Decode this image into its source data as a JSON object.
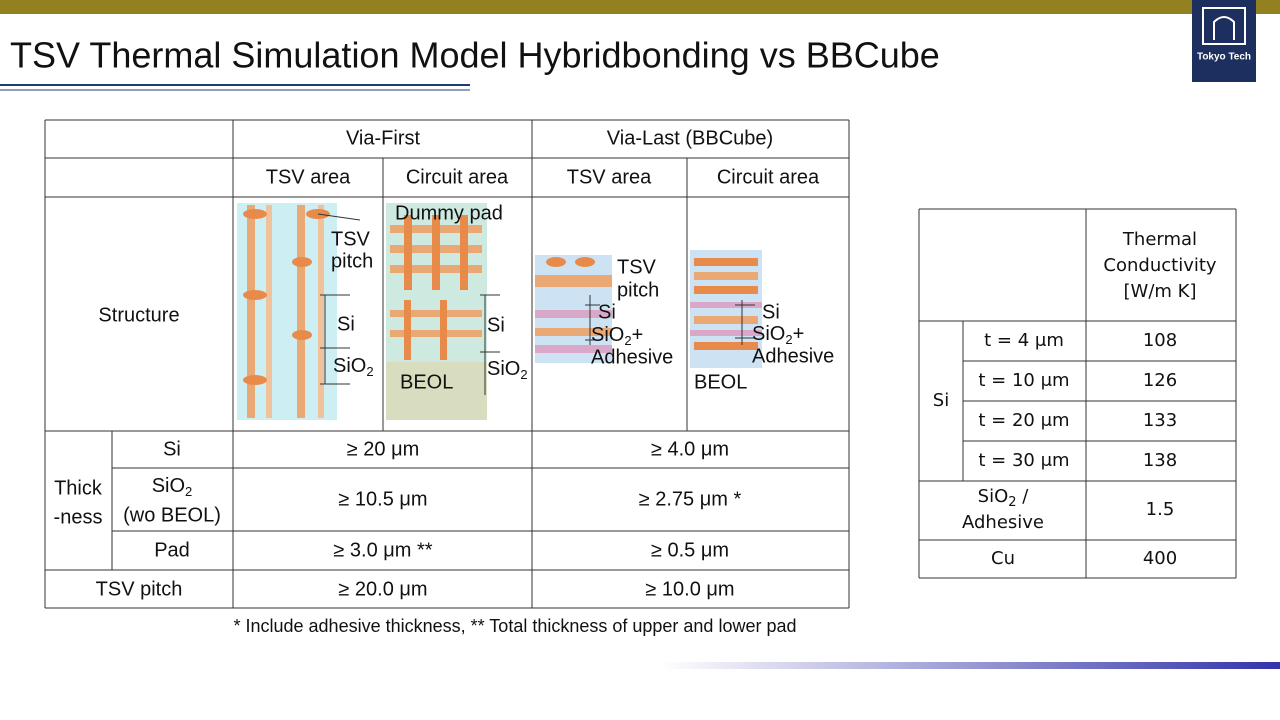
{
  "header": {
    "title": "TSV Thermal Simulation Model Hybridbonding vs BBCube",
    "logo": "Tokyo Tech"
  },
  "left_table": {
    "headers": {
      "via_first": "Via-First",
      "via_last": "Via-Last (BBCube)",
      "tsv_area_1": "TSV area",
      "circuit_area_1": "Circuit area",
      "tsv_area_2": "TSV area",
      "circuit_area_2": "Circuit area"
    },
    "structure_label": "Structure",
    "figures": [
      {
        "tsv": "TSV",
        "pitch": "pitch",
        "si": "Si",
        "sio": "SiO",
        "sub": "2"
      },
      {
        "dummy": "Dummy pad",
        "si": "Si",
        "sio": "SiO",
        "sub": "2",
        "beol": "BEOL"
      },
      {
        "tsv": "TSV",
        "pitch": "pitch",
        "si": "Si",
        "sio": "SiO",
        "sub": "2",
        "plus": "+",
        "adhesive": "Adhesive"
      },
      {
        "si": "Si",
        "sio": "SiO",
        "sub": "2",
        "plus": "+",
        "adhesive": "Adhesive",
        "beol": "BEOL"
      }
    ],
    "thickness_label": [
      "Thick",
      "-ness"
    ],
    "rows": [
      {
        "label": "Si",
        "via_first": "≥ 20 μm",
        "via_last": "≥ 4.0 μm"
      },
      {
        "label": "SiO",
        "sub": "2",
        "note": "(wo BEOL)",
        "via_first": "≥ 10.5 μm",
        "via_last": "≥ 2.75 μm *"
      },
      {
        "label": "Pad",
        "via_first": "≥ 3.0 μm **",
        "via_last": "≥ 0.5 μm"
      }
    ],
    "tsv_pitch": {
      "label": "TSV pitch",
      "via_first": "≥ 20.0 μm",
      "via_last": "≥ 10.0 μm"
    },
    "footnote": "* Include adhesive thickness, ** Total thickness of upper and lower pad"
  },
  "right_table": {
    "header": [
      "Thermal",
      "Conductivity",
      "[W/m K]"
    ],
    "group": "Si",
    "rows": [
      {
        "label": "t = 4 μm",
        "value": 108
      },
      {
        "label": "t = 10 μm",
        "value": 126
      },
      {
        "label": "t = 20 μm",
        "value": 133
      },
      {
        "label": "t = 30 μm",
        "value": 138
      }
    ],
    "sio": {
      "label": "SiO",
      "sub": "2",
      "slash": " /",
      "label2": "Adhesive",
      "value": 1.5
    },
    "cu": {
      "label": "Cu",
      "value": 400
    }
  }
}
